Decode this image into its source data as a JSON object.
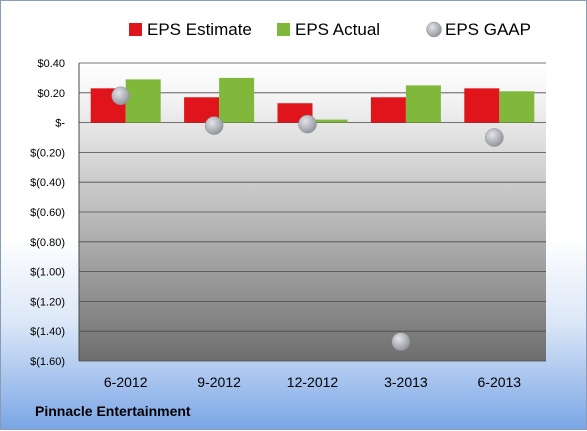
{
  "company_name": "Pinnacle Entertainment",
  "chart_data": {
    "type": "bar",
    "categories": [
      "6-2012",
      "9-2012",
      "12-2012",
      "3-2013",
      "6-2013"
    ],
    "series": [
      {
        "name": "EPS Estimate",
        "kind": "bar",
        "color": "#e0141b",
        "values": [
          0.23,
          0.17,
          0.13,
          0.17,
          0.23
        ]
      },
      {
        "name": "EPS Actual",
        "kind": "bar",
        "color": "#7fb83a",
        "values": [
          0.29,
          0.3,
          0.02,
          0.25,
          0.21
        ]
      },
      {
        "name": "EPS GAAP",
        "kind": "point",
        "color": "#a9adb3",
        "values": [
          0.18,
          -0.02,
          -0.01,
          -1.47,
          -0.1
        ]
      }
    ],
    "yticks": [
      0.4,
      0.2,
      0,
      -0.2,
      -0.4,
      -0.6,
      -0.8,
      -1.0,
      -1.2,
      -1.4,
      -1.6
    ],
    "ytick_labels": [
      "$0.40",
      "$0.20",
      "$-",
      "$(0.20)",
      "$(0.40)",
      "$(0.60)",
      "$(0.80)",
      "$(1.00)",
      "$(1.20)",
      "$(1.40)",
      "$(1.60)"
    ],
    "ylim": [
      -1.6,
      0.4
    ],
    "grid": true,
    "legend_position": "top"
  }
}
